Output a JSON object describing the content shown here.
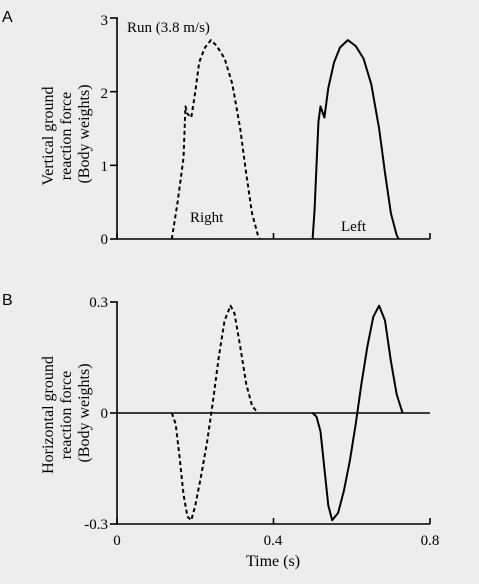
{
  "chart_data": [
    {
      "panel": "A",
      "type": "line",
      "annotation": "Run (3.8 m/s)",
      "ylabel": [
        "Vertical ground",
        "reaction force",
        "(Body weights)"
      ],
      "xlim": [
        0,
        0.8
      ],
      "ylim": [
        0,
        3
      ],
      "yticks": [
        "0",
        "1",
        "2",
        "3"
      ],
      "ytick_values": [
        0,
        1,
        2,
        3
      ],
      "xtick_values": [
        0,
        0.4,
        0.8
      ],
      "series": [
        {
          "name": "Right",
          "style": "dashed",
          "points": [
            [
              0.14,
              0
            ],
            [
              0.155,
              0.5
            ],
            [
              0.17,
              1.1
            ],
            [
              0.175,
              1.8
            ],
            [
              0.18,
              1.7
            ],
            [
              0.19,
              1.65
            ],
            [
              0.2,
              2.0
            ],
            [
              0.21,
              2.4
            ],
            [
              0.225,
              2.6
            ],
            [
              0.24,
              2.7
            ],
            [
              0.255,
              2.62
            ],
            [
              0.275,
              2.45
            ],
            [
              0.295,
              2.1
            ],
            [
              0.315,
              1.5
            ],
            [
              0.33,
              0.9
            ],
            [
              0.345,
              0.35
            ],
            [
              0.36,
              0.05
            ],
            [
              0.365,
              0
            ]
          ]
        },
        {
          "name": "Left",
          "style": "solid",
          "points": [
            [
              0.5,
              0
            ],
            [
              0.505,
              0.4
            ],
            [
              0.51,
              1.0
            ],
            [
              0.515,
              1.6
            ],
            [
              0.52,
              1.8
            ],
            [
              0.53,
              1.65
            ],
            [
              0.54,
              2.05
            ],
            [
              0.555,
              2.4
            ],
            [
              0.57,
              2.6
            ],
            [
              0.59,
              2.7
            ],
            [
              0.61,
              2.62
            ],
            [
              0.63,
              2.45
            ],
            [
              0.65,
              2.1
            ],
            [
              0.67,
              1.5
            ],
            [
              0.685,
              0.9
            ],
            [
              0.7,
              0.35
            ],
            [
              0.715,
              0.05
            ],
            [
              0.72,
              0
            ]
          ]
        }
      ]
    },
    {
      "panel": "B",
      "type": "line",
      "ylabel": [
        "Horizontal ground",
        "reaction force",
        "(Body weights)"
      ],
      "xlabel": "Time (s)",
      "xlim": [
        0,
        0.8
      ],
      "ylim": [
        -0.3,
        0.3
      ],
      "yticks": [
        "-0.3",
        "0",
        "0.3"
      ],
      "ytick_values": [
        -0.3,
        0,
        0.3
      ],
      "xticks": [
        "0",
        "0.4",
        "0.8"
      ],
      "xtick_values": [
        0,
        0.4,
        0.8
      ],
      "series": [
        {
          "name": "Right",
          "style": "dashed",
          "points": [
            [
              0.14,
              0
            ],
            [
              0.15,
              -0.03
            ],
            [
              0.16,
              -0.12
            ],
            [
              0.17,
              -0.22
            ],
            [
              0.18,
              -0.28
            ],
            [
              0.19,
              -0.29
            ],
            [
              0.2,
              -0.25
            ],
            [
              0.215,
              -0.17
            ],
            [
              0.23,
              -0.08
            ],
            [
              0.245,
              0.03
            ],
            [
              0.26,
              0.15
            ],
            [
              0.275,
              0.25
            ],
            [
              0.29,
              0.29
            ],
            [
              0.3,
              0.27
            ],
            [
              0.315,
              0.18
            ],
            [
              0.33,
              0.08
            ],
            [
              0.345,
              0.02
            ],
            [
              0.36,
              0
            ]
          ]
        },
        {
          "name": "Left",
          "style": "solid",
          "points": [
            [
              0.5,
              0
            ],
            [
              0.51,
              -0.01
            ],
            [
              0.52,
              -0.05
            ],
            [
              0.53,
              -0.15
            ],
            [
              0.54,
              -0.25
            ],
            [
              0.55,
              -0.29
            ],
            [
              0.565,
              -0.27
            ],
            [
              0.58,
              -0.21
            ],
            [
              0.595,
              -0.13
            ],
            [
              0.61,
              -0.03
            ],
            [
              0.625,
              0.08
            ],
            [
              0.64,
              0.18
            ],
            [
              0.655,
              0.26
            ],
            [
              0.67,
              0.29
            ],
            [
              0.685,
              0.25
            ],
            [
              0.7,
              0.14
            ],
            [
              0.715,
              0.05
            ],
            [
              0.73,
              0
            ]
          ]
        }
      ]
    }
  ]
}
